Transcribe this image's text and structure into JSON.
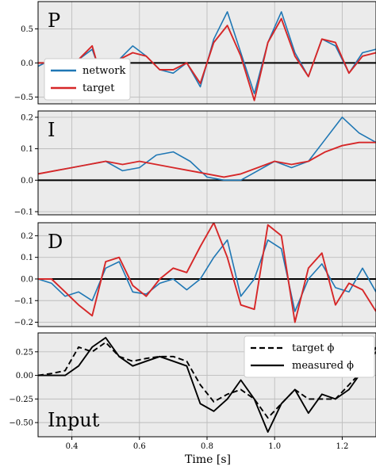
{
  "chart_data": [
    {
      "type": "line",
      "panel_label": "P",
      "xlim": [
        0.3,
        1.3
      ],
      "ylim": [
        -0.6,
        0.9
      ],
      "yticks": [
        0.5,
        0.0,
        -0.5
      ],
      "ytick_labels": [
        "0.5",
        "0.0",
        "−0.5"
      ],
      "grid": true,
      "legend": "lower-left",
      "series": [
        {
          "name": "network",
          "color": "#1f77b4",
          "x": [
            0.3,
            0.34,
            0.38,
            0.42,
            0.46,
            0.5,
            0.54,
            0.58,
            0.62,
            0.66,
            0.7,
            0.74,
            0.78,
            0.82,
            0.86,
            0.9,
            0.94,
            0.98,
            1.02,
            1.06,
            1.1,
            1.14,
            1.18,
            1.22,
            1.26,
            1.3
          ],
          "y": [
            -0.05,
            0.05,
            -0.1,
            0.05,
            0.2,
            -0.35,
            0.05,
            0.25,
            0.1,
            -0.1,
            -0.15,
            0.0,
            -0.35,
            0.35,
            0.75,
            0.15,
            -0.45,
            0.3,
            0.75,
            0.15,
            -0.2,
            0.35,
            0.25,
            -0.15,
            0.15,
            0.2
          ]
        },
        {
          "name": "target",
          "color": "#d62728",
          "x": [
            0.3,
            0.34,
            0.38,
            0.42,
            0.46,
            0.5,
            0.54,
            0.58,
            0.62,
            0.66,
            0.7,
            0.74,
            0.78,
            0.82,
            0.86,
            0.9,
            0.94,
            0.98,
            1.02,
            1.06,
            1.1,
            1.14,
            1.18,
            1.22,
            1.26,
            1.3
          ],
          "y": [
            0.0,
            0.0,
            -0.1,
            0.05,
            0.25,
            -0.45,
            0.05,
            0.15,
            0.1,
            -0.1,
            -0.1,
            0.0,
            -0.3,
            0.3,
            0.55,
            0.1,
            -0.55,
            0.3,
            0.65,
            0.1,
            -0.2,
            0.35,
            0.3,
            -0.15,
            0.1,
            0.15
          ]
        }
      ]
    },
    {
      "type": "line",
      "panel_label": "I",
      "xlim": [
        0.3,
        1.3
      ],
      "ylim": [
        -0.11,
        0.22
      ],
      "yticks": [
        0.2,
        0.1,
        0.0,
        -0.1
      ],
      "ytick_labels": [
        "0.2",
        "0.1",
        "0.0",
        "−0.1"
      ],
      "grid": true,
      "series": [
        {
          "name": "network",
          "color": "#1f77b4",
          "x": [
            0.3,
            0.35,
            0.4,
            0.45,
            0.5,
            0.55,
            0.6,
            0.65,
            0.7,
            0.75,
            0.8,
            0.85,
            0.9,
            0.95,
            1.0,
            1.05,
            1.1,
            1.15,
            1.2,
            1.25,
            1.3
          ],
          "y": [
            0.02,
            0.03,
            0.04,
            0.05,
            0.06,
            0.03,
            0.04,
            0.08,
            0.09,
            0.06,
            0.01,
            0.0,
            0.0,
            0.03,
            0.06,
            0.04,
            0.06,
            0.13,
            0.2,
            0.15,
            0.12
          ]
        },
        {
          "name": "target",
          "color": "#d62728",
          "x": [
            0.3,
            0.35,
            0.4,
            0.45,
            0.5,
            0.55,
            0.6,
            0.65,
            0.7,
            0.75,
            0.8,
            0.85,
            0.9,
            0.95,
            1.0,
            1.05,
            1.1,
            1.15,
            1.2,
            1.25,
            1.3
          ],
          "y": [
            0.02,
            0.03,
            0.04,
            0.05,
            0.06,
            0.05,
            0.06,
            0.05,
            0.04,
            0.03,
            0.02,
            0.01,
            0.02,
            0.04,
            0.06,
            0.05,
            0.06,
            0.09,
            0.11,
            0.12,
            0.12
          ]
        }
      ]
    },
    {
      "type": "line",
      "panel_label": "D",
      "xlim": [
        0.3,
        1.3
      ],
      "ylim": [
        -0.22,
        0.26
      ],
      "yticks": [
        0.2,
        0.1,
        0.0,
        -0.1,
        -0.2
      ],
      "ytick_labels": [
        "0.2",
        "0.1",
        "0.0",
        "−0.1",
        "−0.2"
      ],
      "grid": true,
      "series": [
        {
          "name": "network",
          "color": "#1f77b4",
          "x": [
            0.3,
            0.34,
            0.38,
            0.42,
            0.46,
            0.5,
            0.54,
            0.58,
            0.62,
            0.66,
            0.7,
            0.74,
            0.78,
            0.82,
            0.86,
            0.9,
            0.94,
            0.98,
            1.02,
            1.06,
            1.1,
            1.14,
            1.18,
            1.22,
            1.26,
            1.3
          ],
          "y": [
            0.0,
            -0.02,
            -0.08,
            -0.06,
            -0.1,
            0.05,
            0.08,
            -0.06,
            -0.07,
            -0.02,
            0.0,
            -0.05,
            0.0,
            0.1,
            0.18,
            -0.08,
            0.0,
            0.18,
            0.14,
            -0.15,
            0.0,
            0.07,
            -0.04,
            -0.06,
            0.05,
            -0.06
          ]
        },
        {
          "name": "target",
          "color": "#d62728",
          "x": [
            0.3,
            0.34,
            0.38,
            0.42,
            0.46,
            0.5,
            0.54,
            0.58,
            0.62,
            0.66,
            0.7,
            0.74,
            0.78,
            0.82,
            0.86,
            0.9,
            0.94,
            0.98,
            1.02,
            1.06,
            1.1,
            1.14,
            1.18,
            1.22,
            1.26,
            1.3
          ],
          "y": [
            0.0,
            0.0,
            -0.06,
            -0.12,
            -0.17,
            0.08,
            0.1,
            -0.03,
            -0.08,
            0.0,
            0.05,
            0.03,
            0.15,
            0.26,
            0.1,
            -0.12,
            -0.14,
            0.25,
            0.2,
            -0.2,
            0.05,
            0.12,
            -0.12,
            -0.02,
            -0.05,
            -0.15
          ]
        }
      ]
    },
    {
      "type": "line",
      "panel_label": "Input",
      "xlim": [
        0.3,
        1.3
      ],
      "ylim": [
        -0.65,
        0.45
      ],
      "yticks": [
        0.25,
        0.0,
        -0.25,
        -0.5
      ],
      "ytick_labels": [
        "0.25",
        "0.00",
        "−0.25",
        "−0.50"
      ],
      "xticks": [
        0.4,
        0.6,
        0.8,
        1.0,
        1.2
      ],
      "xtick_labels": [
        "0.4",
        "0.6",
        "0.8",
        "1.0",
        "1.2"
      ],
      "xlabel": "Time [s]",
      "grid": true,
      "legend": "top-right",
      "series": [
        {
          "name": "target ϕ",
          "color": "#000000",
          "dash": true,
          "x": [
            0.3,
            0.34,
            0.38,
            0.42,
            0.46,
            0.5,
            0.54,
            0.58,
            0.62,
            0.66,
            0.7,
            0.74,
            0.78,
            0.82,
            0.86,
            0.9,
            0.94,
            0.98,
            1.02,
            1.06,
            1.1,
            1.14,
            1.18,
            1.22,
            1.26,
            1.3
          ],
          "y": [
            0.0,
            0.02,
            0.05,
            0.3,
            0.25,
            0.35,
            0.2,
            0.15,
            0.18,
            0.2,
            0.2,
            0.15,
            -0.1,
            -0.28,
            -0.2,
            -0.15,
            -0.25,
            -0.45,
            -0.3,
            -0.15,
            -0.25,
            -0.25,
            -0.25,
            -0.1,
            0.05,
            0.3
          ]
        },
        {
          "name": "measured ϕ",
          "color": "#000000",
          "dash": false,
          "x": [
            0.3,
            0.34,
            0.38,
            0.42,
            0.46,
            0.5,
            0.54,
            0.58,
            0.62,
            0.66,
            0.7,
            0.74,
            0.78,
            0.82,
            0.86,
            0.9,
            0.94,
            0.98,
            1.02,
            1.06,
            1.1,
            1.14,
            1.18,
            1.22,
            1.26,
            1.3
          ],
          "y": [
            0.0,
            0.0,
            0.0,
            0.1,
            0.3,
            0.4,
            0.2,
            0.1,
            0.15,
            0.2,
            0.15,
            0.1,
            -0.3,
            -0.38,
            -0.25,
            -0.05,
            -0.25,
            -0.6,
            -0.3,
            -0.15,
            -0.4,
            -0.2,
            -0.25,
            -0.15,
            0.05,
            0.25
          ]
        }
      ]
    }
  ]
}
